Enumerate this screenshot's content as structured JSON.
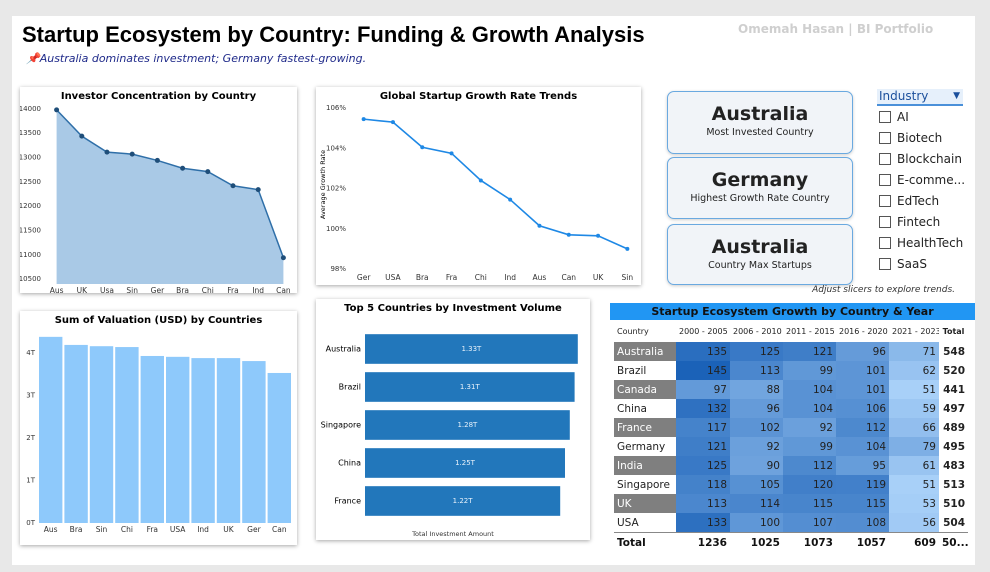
{
  "header": {
    "title": "Startup Ecosystem by Country: Funding & Growth Analysis",
    "subtitle": "📌Australia dominates investment; Germany fastest-growing.",
    "author": "Omemah Hasan | BI Portfolio"
  },
  "chart_data": [
    {
      "type": "area",
      "title": "Investor Concentration by Country",
      "categories": [
        "Aus",
        "UK",
        "Usa",
        "Sin",
        "Ger",
        "Bra",
        "Chi",
        "Fra",
        "Ind",
        "Can"
      ],
      "values": [
        13980,
        13440,
        13110,
        13070,
        12940,
        12780,
        12710,
        12420,
        12340,
        10940
      ],
      "color": "#a9c9e6",
      "line_color": "#2f6fa8",
      "ylim": [
        10400,
        14100
      ],
      "yticks": [
        10500,
        11000,
        11500,
        12000,
        12500,
        13000,
        13500,
        14000
      ]
    },
    {
      "type": "line",
      "title": "Global Startup Growth Rate Trends",
      "y_label": "Average Growth Rate",
      "categories": [
        "Ger",
        "USA",
        "Bra",
        "Fra",
        "Chi",
        "Ind",
        "Aus",
        "Can",
        "UK",
        "Sin"
      ],
      "values": [
        105.45,
        105.3,
        104.05,
        103.75,
        102.4,
        101.45,
        100.15,
        99.7,
        99.65,
        99.0
      ],
      "color": "#1e88e5",
      "ylim": [
        97.9,
        106.5
      ],
      "yticks": [
        {
          "value": 98,
          "label": "98%"
        },
        {
          "value": 100,
          "label": "100%"
        },
        {
          "value": 102,
          "label": "102%"
        },
        {
          "value": 104,
          "label": "104%"
        },
        {
          "value": 106,
          "label": "106%"
        }
      ]
    },
    {
      "type": "bar",
      "title": "Sum of Valuation (USD) by Countries",
      "categories": [
        "Aus",
        "Bra",
        "Sin",
        "Chi",
        "Fra",
        "USA",
        "Ind",
        "UK",
        "Ger",
        "Can"
      ],
      "values": [
        4.38,
        4.19,
        4.16,
        4.14,
        3.93,
        3.91,
        3.88,
        3.88,
        3.81,
        3.53
      ],
      "color": "#8ec9fb",
      "ylim": [
        0,
        4.6
      ],
      "yticks": [
        {
          "value": 0,
          "label": "0T"
        },
        {
          "value": 1,
          "label": "1T"
        },
        {
          "value": 2,
          "label": "2T"
        },
        {
          "value": 3,
          "label": "3T"
        },
        {
          "value": 4,
          "label": "4T"
        }
      ]
    },
    {
      "type": "hbar",
      "title": "Top 5 Countries by Investment Volume",
      "x_label": "Total Investment Amount",
      "categories": [
        "Australia",
        "Brazil",
        "Singapore",
        "China",
        "France"
      ],
      "values": [
        1.33,
        1.31,
        1.28,
        1.25,
        1.22
      ],
      "value_labels": [
        "1.33T",
        "1.31T",
        "1.28T",
        "1.25T",
        "1.22T"
      ],
      "color": "#2277bb",
      "xlim": [
        0,
        1.4
      ]
    }
  ],
  "cards": [
    {
      "value": "Australia",
      "label": "Most Invested Country"
    },
    {
      "value": "Germany",
      "label": "Highest Growth Rate Country"
    },
    {
      "value": "Australia",
      "label": "Country Max Startups"
    }
  ],
  "slicer": {
    "title": "Industry",
    "items": [
      "AI",
      "Biotech",
      "Blockchain",
      "E-comme...",
      "EdTech",
      "Fintech",
      "HealthTech",
      "SaaS"
    ]
  },
  "note": "Adjust slicers to explore trends.",
  "matrix": {
    "title": "Startup Ecosystem Growth by Country & Year",
    "columns": [
      "Country",
      "2000 - 2005",
      "2006 - 2010",
      "2011 - 2015",
      "2016 - 2020",
      "2021 - 2023",
      "Total"
    ],
    "rows": [
      [
        "Australia",
        135,
        125,
        121,
        96,
        71,
        548
      ],
      [
        "Brazil",
        145,
        113,
        99,
        101,
        62,
        520
      ],
      [
        "Canada",
        97,
        88,
        104,
        101,
        51,
        441
      ],
      [
        "China",
        132,
        96,
        104,
        106,
        59,
        497
      ],
      [
        "France",
        117,
        102,
        92,
        112,
        66,
        489
      ],
      [
        "Germany",
        121,
        92,
        99,
        104,
        79,
        495
      ],
      [
        "India",
        125,
        90,
        112,
        95,
        61,
        483
      ],
      [
        "Singapore",
        118,
        105,
        120,
        119,
        51,
        513
      ],
      [
        "UK",
        113,
        114,
        115,
        115,
        53,
        510
      ],
      [
        "USA",
        133,
        100,
        107,
        108,
        56,
        504
      ]
    ],
    "total": [
      "Total",
      1236,
      1025,
      1073,
      1057,
      609,
      "50..."
    ]
  }
}
